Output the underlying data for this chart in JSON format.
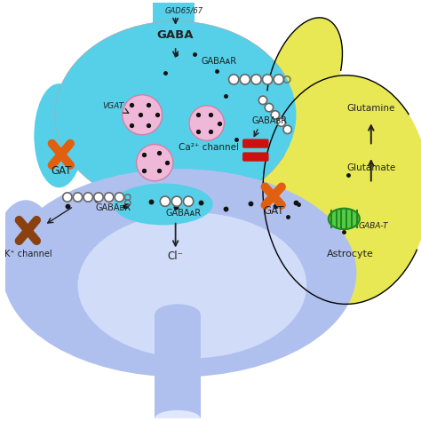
{
  "bg_color": "#ffffff",
  "presynaptic_color_top": "#55d0e8",
  "presynaptic_color_bot": "#90e8f8",
  "postsynaptic_color_top": "#b0c0ee",
  "postsynaptic_color_bot": "#e0e8ff",
  "astrocyte_color": "#e8e855",
  "vesicle_color": "#f0b8d8",
  "vesicle_edge": "#d080a8",
  "vesicle_dot_color": "#111111",
  "gat_color_orange": "#e06010",
  "gat_color_brown": "#8b4010",
  "ca_channel_color": "#cc1111",
  "receptor_color": "#666666",
  "arrow_color": "#222222",
  "dot_color": "#111111",
  "green_organelle": "#55cc44",
  "green_organelle_edge": "#228822",
  "labels": {
    "GAD65_67": "GAD65/67",
    "GABA": "GABA",
    "VGAT": "VGAT",
    "GABAaR_pre": "GABAᴀR",
    "GABAbR_pre": "GABAʙR",
    "Ca_channel": "Ca²⁺ channel",
    "GAT_left": "GAT",
    "GAT_right": "GAT",
    "GABAaR_post1": "GABAᴀR",
    "GABAaR_post2": "GABAᴀR",
    "GABAbR_post": "GABAʙR",
    "Cl": "Cl⁻",
    "K_channel": "K⁺ channel",
    "Glutamine": "Glutamine",
    "Glutamate": "Glutamate",
    "GABA_T": "GABA-T",
    "Astrocyte": "Astrocyte"
  }
}
